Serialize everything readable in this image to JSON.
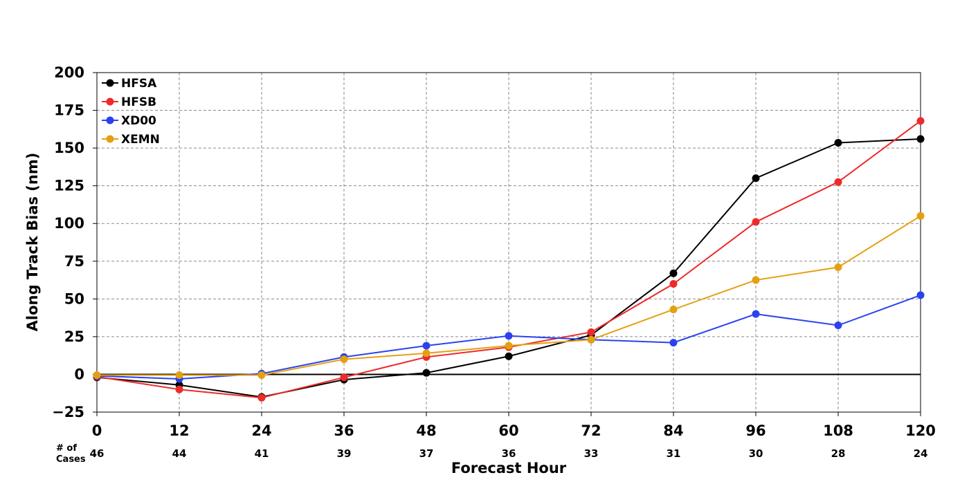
{
  "chart_data": {
    "type": "line",
    "xlabel": "Forecast Hour",
    "ylabel": "Along Track Bias (nm)",
    "x": [
      0,
      12,
      24,
      36,
      48,
      60,
      72,
      84,
      96,
      108,
      120
    ],
    "xlim": [
      0,
      120
    ],
    "ylim": [
      -25,
      200
    ],
    "y_ticks": [
      "−25",
      "0",
      "25",
      "50",
      "75",
      "100",
      "125",
      "150",
      "175",
      "200"
    ],
    "y_tick_values": [
      -25,
      0,
      25,
      50,
      75,
      100,
      125,
      150,
      175,
      200
    ],
    "x_ticks": [
      "0",
      "12",
      "24",
      "36",
      "48",
      "60",
      "72",
      "84",
      "96",
      "108",
      "120"
    ],
    "grid": true,
    "legend_position": "top-left",
    "cases_label_line1": "# of",
    "cases_label_line2": "Cases",
    "cases": [
      "46",
      "44",
      "41",
      "39",
      "37",
      "36",
      "33",
      "31",
      "30",
      "28",
      "24"
    ],
    "series": [
      {
        "name": "HFSA",
        "color": "#000000",
        "values": [
          -2,
          -7,
          -15,
          -3.5,
          1,
          12,
          26,
          67,
          130,
          153.5,
          156
        ]
      },
      {
        "name": "HFSB",
        "color": "#ee2a2a",
        "values": [
          -1.5,
          -10,
          -15.5,
          -2,
          11.5,
          18,
          28,
          60,
          101,
          127.5,
          168
        ]
      },
      {
        "name": "XD00",
        "color": "#2a42ee",
        "values": [
          -1,
          -3,
          0.5,
          11.5,
          19,
          25.5,
          23,
          21,
          40,
          32.5,
          52.5
        ]
      },
      {
        "name": "XEMN",
        "color": "#e5a010",
        "values": [
          -0.5,
          -0.5,
          -0.5,
          10,
          14,
          19,
          23,
          43,
          62.5,
          71,
          105
        ]
      }
    ]
  }
}
